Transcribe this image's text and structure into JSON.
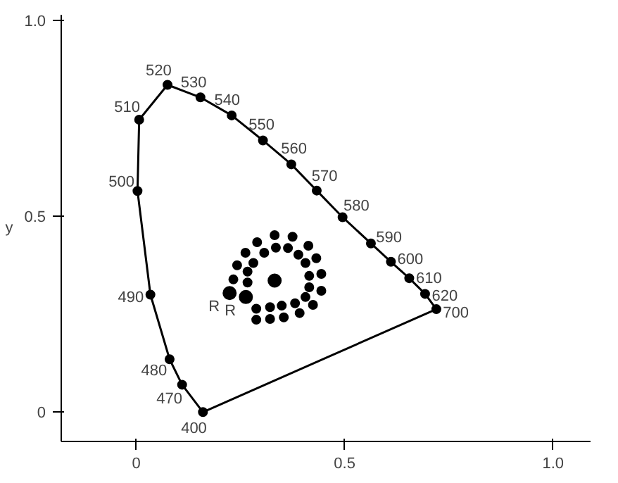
{
  "chart_data": {
    "type": "scatter",
    "ylabel": "y",
    "xlim": [
      -0.18,
      1.09
    ],
    "ylim": [
      -0.075,
      1.015
    ],
    "xticks": [
      0,
      0.5,
      {
        "value": 1.0,
        "label": "1.0"
      }
    ],
    "yticks": [
      0,
      0.5,
      {
        "value": 1.0,
        "label": "1.0"
      }
    ],
    "grid": false,
    "marker": "circle",
    "series": [
      {
        "type": "line",
        "color": "#000000",
        "x": [
          0.16,
          0.11,
          0.08,
          0.034,
          0.003,
          0.007,
          0.075,
          0.154,
          0.229,
          0.304,
          0.372,
          0.433,
          0.495,
          0.563,
          0.611,
          0.655,
          0.693,
          0.72
        ],
        "values": [
          0.0,
          0.07,
          0.135,
          0.3,
          0.565,
          0.747,
          0.836,
          0.804,
          0.758,
          0.694,
          0.633,
          0.566,
          0.498,
          0.431,
          0.384,
          0.342,
          0.302,
          0.263
        ]
      },
      {
        "type": "line",
        "marker": "none",
        "color": "#000000",
        "x": [
          0.16,
          0.72
        ],
        "values": [
          0.0,
          0.263
        ]
      },
      {
        "color": "#000000",
        "x": [
          0.29,
          0.332,
          0.375,
          0.413,
          0.432,
          0.444,
          0.444,
          0.424,
          0.392,
          0.354,
          0.321,
          0.288,
          0.262,
          0.242,
          0.233,
          0.307,
          0.335,
          0.364,
          0.389,
          0.406,
          0.415,
          0.415,
          0.406,
          0.381,
          0.349,
          0.321,
          0.288,
          0.281,
          0.267,
          0.267
        ],
        "values": [
          0.434,
          0.452,
          0.448,
          0.425,
          0.393,
          0.353,
          0.31,
          0.274,
          0.253,
          0.242,
          0.238,
          0.236,
          0.407,
          0.375,
          0.339,
          0.407,
          0.42,
          0.419,
          0.402,
          0.381,
          0.348,
          0.319,
          0.294,
          0.278,
          0.272,
          0.268,
          0.264,
          0.381,
          0.359,
          0.331
        ]
      },
      {
        "color": "#000000",
        "x": [
          0.224,
          0.263,
          0.332
        ],
        "values": [
          0.304,
          0.294,
          0.336
        ]
      }
    ],
    "annotations": [
      {
        "text": "400",
        "x": 0.16,
        "y": 0.0
      },
      {
        "text": "470",
        "x": 0.11,
        "y": 0.07
      },
      {
        "text": "480",
        "x": 0.08,
        "y": 0.135
      },
      {
        "text": "490",
        "x": 0.034,
        "y": 0.3
      },
      {
        "text": "500",
        "x": 0.003,
        "y": 0.565
      },
      {
        "text": "510",
        "x": 0.007,
        "y": 0.747
      },
      {
        "text": "520",
        "x": 0.075,
        "y": 0.836
      },
      {
        "text": "530",
        "x": 0.154,
        "y": 0.804
      },
      {
        "text": "540",
        "x": 0.229,
        "y": 0.758
      },
      {
        "text": "550",
        "x": 0.304,
        "y": 0.694
      },
      {
        "text": "560",
        "x": 0.372,
        "y": 0.633
      },
      {
        "text": "570",
        "x": 0.433,
        "y": 0.566
      },
      {
        "text": "580",
        "x": 0.495,
        "y": 0.498
      },
      {
        "text": "590",
        "x": 0.563,
        "y": 0.431
      },
      {
        "text": "600",
        "x": 0.611,
        "y": 0.384
      },
      {
        "text": "610",
        "x": 0.655,
        "y": 0.342
      },
      {
        "text": "620",
        "x": 0.693,
        "y": 0.302
      },
      {
        "text": "700",
        "x": 0.72,
        "y": 0.263
      },
      {
        "text": "R",
        "x": 0.224,
        "y": 0.304
      },
      {
        "text": "R",
        "x": 0.263,
        "y": 0.294
      }
    ]
  }
}
